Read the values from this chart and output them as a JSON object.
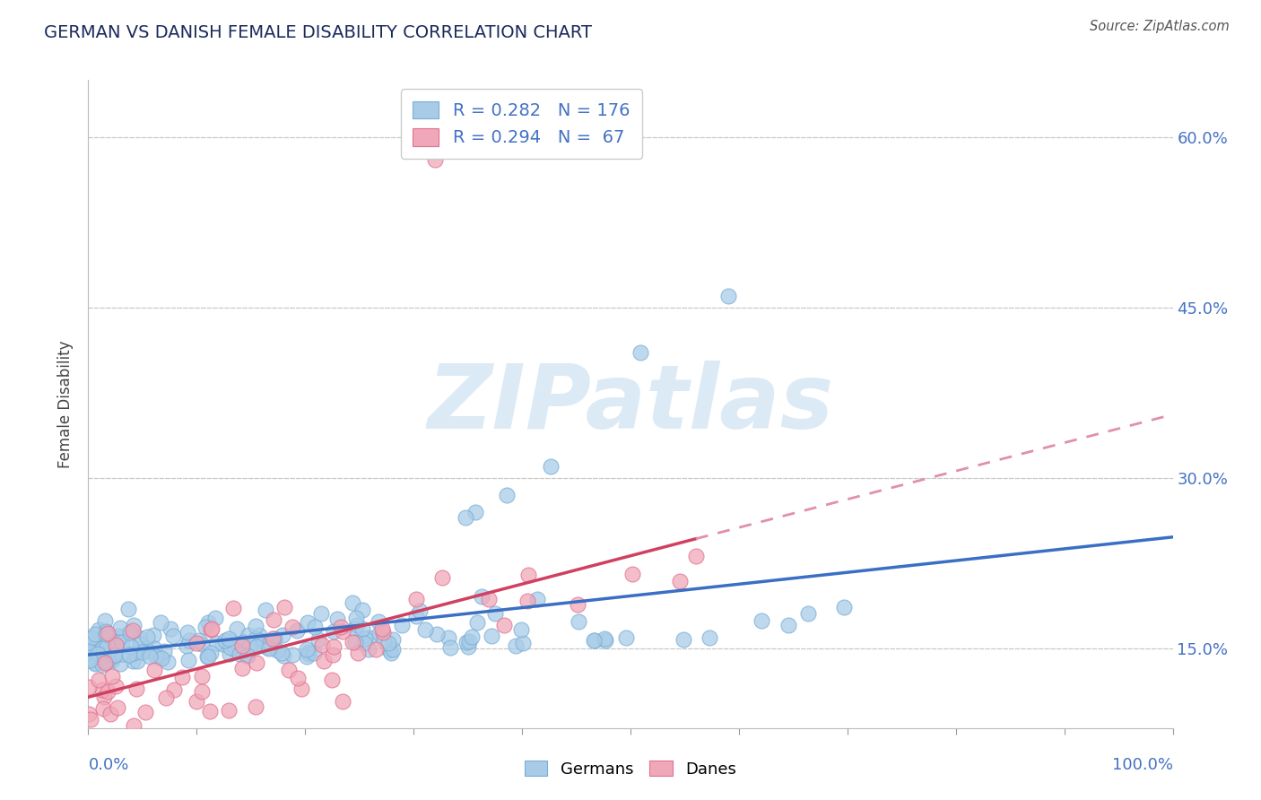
{
  "title": "GERMAN VS DANISH FEMALE DISABILITY CORRELATION CHART",
  "source": "Source: ZipAtlas.com",
  "ylabel": "Female Disability",
  "ylim": [
    0.08,
    0.65
  ],
  "xlim": [
    0.0,
    1.0
  ],
  "yticks": [
    0.15,
    0.3,
    0.45,
    0.6
  ],
  "ytick_labels": [
    "15.0%",
    "30.0%",
    "45.0%",
    "60.0%"
  ],
  "german_R": 0.282,
  "german_N": 176,
  "danish_R": 0.294,
  "danish_N": 67,
  "german_color": "#a8cce8",
  "danish_color": "#f0a8b8",
  "german_edge_color": "#7aadd4",
  "danish_edge_color": "#e07090",
  "german_trend_color": "#3a6fc4",
  "danish_trend_color": "#d04060",
  "danish_trend_dashed_color": "#e090a8",
  "background_color": "#ffffff",
  "grid_color": "#c8c8c8",
  "title_color": "#1a2a5a",
  "axis_label_color": "#4472c4",
  "watermark_color": "#d8e8f4",
  "german_seed": 42,
  "danish_seed": 77
}
